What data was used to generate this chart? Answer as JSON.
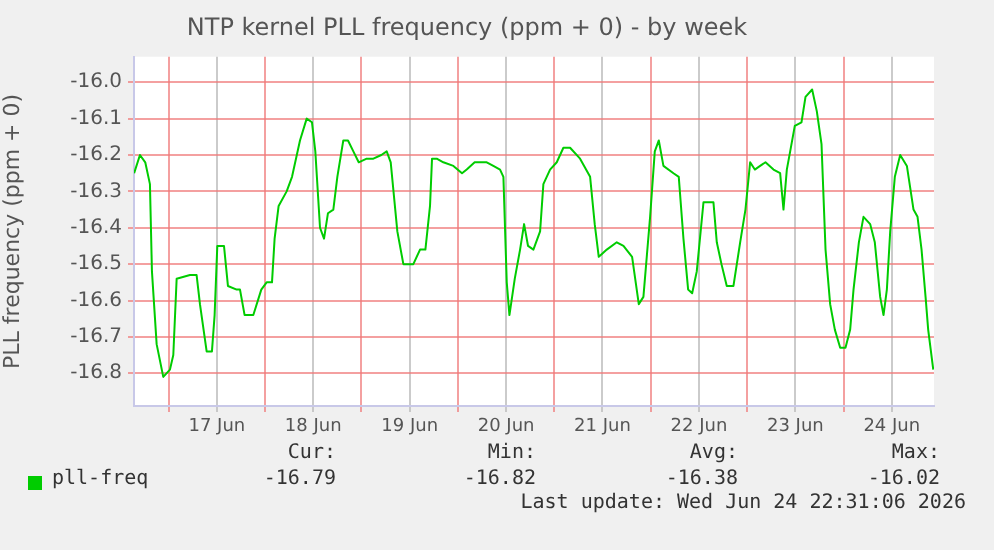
{
  "chart_data": {
    "type": "line",
    "title": "NTP kernel PLL frequency (ppm + 0) - by week",
    "ylabel": "PLL frequency (ppm + 0)",
    "x": [
      "2026-06-16T15:25",
      "2026-06-16T16:52",
      "2026-06-16T18:11",
      "2026-06-16T19:21",
      "2026-06-16T19:51",
      "2026-06-16T21:01",
      "2026-06-16T22:40",
      "2026-06-17T00:20",
      "2026-06-17T01:10",
      "2026-06-17T02:00",
      "2026-06-17T05:19",
      "2026-06-17T06:58",
      "2026-06-17T07:48",
      "2026-06-17T09:28",
      "2026-06-17T10:47",
      "2026-06-17T11:27",
      "2026-06-17T12:07",
      "2026-06-17T13:47",
      "2026-06-17T14:46",
      "2026-06-17T16:56",
      "2026-06-17T17:46",
      "2026-06-17T18:55",
      "2026-06-17T21:05",
      "2026-06-17T23:04",
      "2026-06-18T00:24",
      "2026-06-18T01:44",
      "2026-06-18T02:23",
      "2026-06-18T03:23",
      "2026-06-18T05:23",
      "2026-06-18T06:43",
      "2026-06-18T08:42",
      "2026-06-18T10:22",
      "2026-06-18T11:41",
      "2026-06-18T12:31",
      "2026-06-18T13:41",
      "2026-06-18T14:41",
      "2026-06-18T15:40",
      "2026-06-18T17:00",
      "2026-06-18T18:00",
      "2026-06-18T19:29",
      "2026-06-18T20:39",
      "2026-06-18T21:59",
      "2026-06-18T23:19",
      "2026-06-19T01:18",
      "2026-06-19T02:58",
      "2026-06-19T04:57",
      "2026-06-19T06:17",
      "2026-06-19T07:17",
      "2026-06-19T08:56",
      "2026-06-19T10:26",
      "2026-06-19T12:55",
      "2026-06-19T14:35",
      "2026-06-19T15:55",
      "2026-06-19T17:04",
      "2026-06-19T17:34",
      "2026-06-19T18:44",
      "2026-06-19T20:23",
      "2026-06-19T22:53",
      "2026-06-20T01:02",
      "2026-06-20T02:12",
      "2026-06-20T04:11",
      "2026-06-20T07:11",
      "2026-06-20T08:50",
      "2026-06-20T10:30",
      "2026-06-20T11:20",
      "2026-06-20T12:10",
      "2026-06-20T12:50",
      "2026-06-20T14:10",
      "2026-06-20T15:29",
      "2026-06-20T16:29",
      "2026-06-20T17:28",
      "2026-06-20T18:48",
      "2026-06-20T20:28",
      "2026-06-20T21:17",
      "2026-06-20T22:57",
      "2026-06-21T00:37",
      "2026-06-21T02:16",
      "2026-06-21T03:56",
      "2026-06-21T06:25",
      "2026-06-21T08:55",
      "2026-06-21T10:04",
      "2026-06-21T11:04",
      "2026-06-21T13:04",
      "2026-06-21T15:33",
      "2026-06-21T17:13",
      "2026-06-21T19:22",
      "2026-06-21T21:02",
      "2026-06-21T22:11",
      "2026-06-21T23:51",
      "2026-06-22T01:01",
      "2026-06-22T02:01",
      "2026-06-22T03:10",
      "2026-06-22T05:40",
      "2026-06-22T06:59",
      "2026-06-22T08:09",
      "2026-06-22T09:19",
      "2026-06-22T10:19",
      "2026-06-22T11:28",
      "2026-06-22T13:08",
      "2026-06-22T15:37",
      "2026-06-22T16:27",
      "2026-06-22T17:37",
      "2026-06-22T18:56",
      "2026-06-22T20:36",
      "2026-06-22T22:16",
      "2026-06-22T23:35",
      "2026-06-23T00:45",
      "2026-06-23T01:55",
      "2026-06-23T03:14",
      "2026-06-23T04:34",
      "2026-06-23T06:34",
      "2026-06-23T08:13",
      "2026-06-23T09:03",
      "2026-06-23T09:53",
      "2026-06-23T10:43",
      "2026-06-23T11:52",
      "2026-06-23T13:32",
      "2026-06-23T14:32",
      "2026-06-23T16:11",
      "2026-06-23T17:21",
      "2026-06-23T18:31",
      "2026-06-23T19:31",
      "2026-06-23T20:40",
      "2026-06-23T21:50",
      "2026-06-23T23:10",
      "2026-06-24T00:29",
      "2026-06-24T01:39",
      "2026-06-24T02:29",
      "2026-06-24T03:49",
      "2026-06-24T04:58",
      "2026-06-24T06:38",
      "2026-06-24T07:47",
      "2026-06-24T09:07",
      "2026-06-24T09:57",
      "2026-06-24T10:47",
      "2026-06-24T11:37",
      "2026-06-24T12:46",
      "2026-06-24T14:06",
      "2026-06-24T15:46",
      "2026-06-24T17:25",
      "2026-06-24T18:25",
      "2026-06-24T19:25",
      "2026-06-24T20:25",
      "2026-06-24T21:04",
      "2026-06-24T22:20"
    ],
    "series": [
      {
        "name": "pll-freq",
        "color": "#00cc00",
        "values": [
          -16.25,
          -16.2,
          -16.22,
          -16.28,
          -16.52,
          -16.72,
          -16.81,
          -16.79,
          -16.75,
          -16.54,
          -16.53,
          -16.53,
          -16.61,
          -16.74,
          -16.74,
          -16.64,
          -16.45,
          -16.45,
          -16.56,
          -16.57,
          -16.57,
          -16.64,
          -16.64,
          -16.57,
          -16.55,
          -16.55,
          -16.43,
          -16.34,
          -16.3,
          -16.26,
          -16.16,
          -16.1,
          -16.11,
          -16.19,
          -16.4,
          -16.43,
          -16.36,
          -16.35,
          -16.26,
          -16.16,
          -16.16,
          -16.19,
          -16.22,
          -16.21,
          -16.21,
          -16.2,
          -16.19,
          -16.22,
          -16.41,
          -16.5,
          -16.5,
          -16.46,
          -16.46,
          -16.34,
          -16.21,
          -16.21,
          -16.22,
          -16.23,
          -16.25,
          -16.24,
          -16.22,
          -16.22,
          -16.23,
          -16.24,
          -16.26,
          -16.55,
          -16.64,
          -16.54,
          -16.46,
          -16.39,
          -16.45,
          -16.46,
          -16.41,
          -16.28,
          -16.24,
          -16.22,
          -16.18,
          -16.18,
          -16.21,
          -16.26,
          -16.39,
          -16.48,
          -16.46,
          -16.44,
          -16.45,
          -16.48,
          -16.61,
          -16.59,
          -16.37,
          -16.19,
          -16.16,
          -16.23,
          -16.25,
          -16.26,
          -16.43,
          -16.57,
          -16.58,
          -16.52,
          -16.33,
          -16.33,
          -16.44,
          -16.5,
          -16.56,
          -16.56,
          -16.44,
          -16.35,
          -16.22,
          -16.24,
          -16.23,
          -16.22,
          -16.24,
          -16.25,
          -16.35,
          -16.24,
          -16.19,
          -16.12,
          -16.11,
          -16.04,
          -16.02,
          -16.08,
          -16.17,
          -16.46,
          -16.61,
          -16.68,
          -16.73,
          -16.73,
          -16.68,
          -16.57,
          -16.44,
          -16.37,
          -16.39,
          -16.44,
          -16.59,
          -16.64,
          -16.57,
          -16.41,
          -16.26,
          -16.2,
          -16.23,
          -16.35,
          -16.37,
          -16.46,
          -16.59,
          -16.68,
          -16.79
        ]
      }
    ],
    "xlim": [
      "2026-06-16T15:23",
      "2026-06-24T22:31"
    ],
    "xticks": [
      {
        "value": "2026-06-17T00:00",
        "label": null
      },
      {
        "value": "2026-06-17T12:00",
        "label": "17 Jun"
      },
      {
        "value": "2026-06-18T00:00",
        "label": null
      },
      {
        "value": "2026-06-18T12:00",
        "label": "18 Jun"
      },
      {
        "value": "2026-06-19T00:00",
        "label": null
      },
      {
        "value": "2026-06-19T12:00",
        "label": "19 Jun"
      },
      {
        "value": "2026-06-20T00:00",
        "label": null
      },
      {
        "value": "2026-06-20T12:00",
        "label": "20 Jun"
      },
      {
        "value": "2026-06-21T00:00",
        "label": null
      },
      {
        "value": "2026-06-21T12:00",
        "label": "21 Jun"
      },
      {
        "value": "2026-06-22T00:00",
        "label": null
      },
      {
        "value": "2026-06-22T12:00",
        "label": "22 Jun"
      },
      {
        "value": "2026-06-23T00:00",
        "label": null
      },
      {
        "value": "2026-06-23T12:00",
        "label": "23 Jun"
      },
      {
        "value": "2026-06-24T00:00",
        "label": null
      },
      {
        "value": "2026-06-24T12:00",
        "label": "24 Jun"
      }
    ],
    "ylim": [
      -16.89,
      -15.93
    ],
    "yticks": [
      {
        "value": -16.8,
        "label": "-16.8"
      },
      {
        "value": -16.7,
        "label": "-16.7"
      },
      {
        "value": -16.6,
        "label": "-16.6"
      },
      {
        "value": -16.5,
        "label": "-16.5"
      },
      {
        "value": -16.4,
        "label": "-16.4"
      },
      {
        "value": -16.3,
        "label": "-16.3"
      },
      {
        "value": -16.2,
        "label": "-16.2"
      },
      {
        "value": -16.1,
        "label": "-16.1"
      },
      {
        "value": -16.0,
        "label": "-16.0"
      }
    ],
    "grid": true,
    "legend": "bottom left",
    "marker": "none",
    "line_style": "solid",
    "annotations": [
      "Cur:",
      "-16.79",
      "Min:",
      "-16.82",
      "Avg:",
      "-16.38",
      "Max:",
      "-16.02",
      "Last update: Wed Jun 24 22:31:06 2026"
    ]
  }
}
